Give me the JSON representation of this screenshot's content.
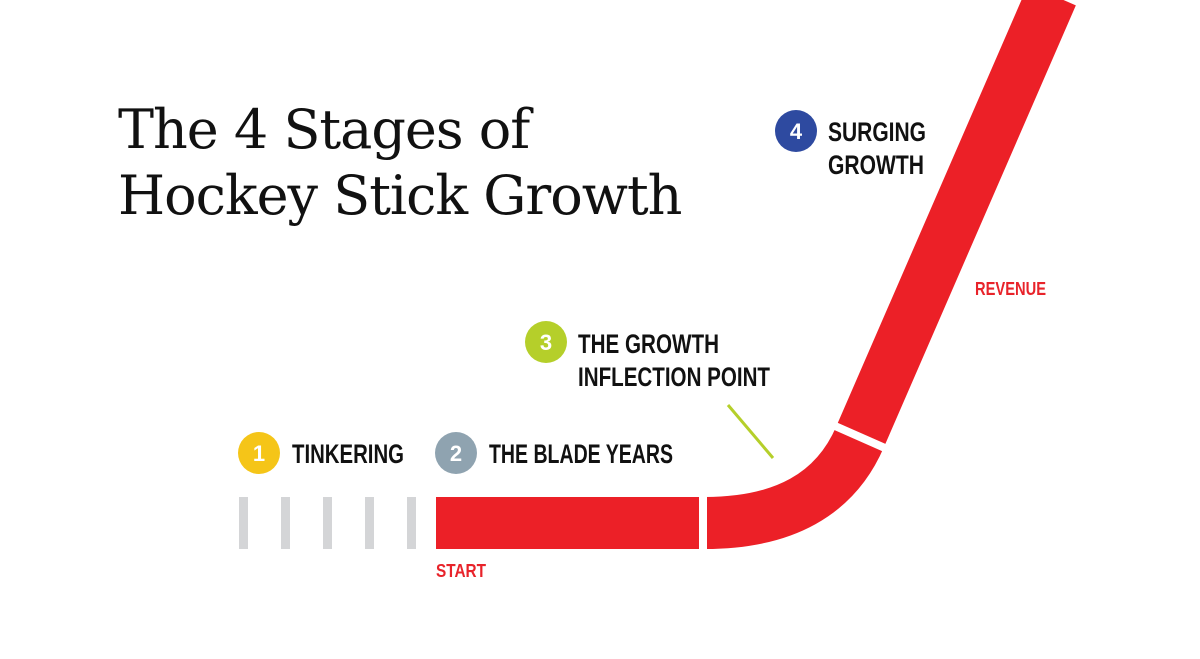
{
  "title": {
    "line1": "The 4 Stages of",
    "line2": "Hockey Stick Growth"
  },
  "stages": [
    {
      "number": "1",
      "label_lines": [
        "TINKERING"
      ],
      "color": "#f5c518"
    },
    {
      "number": "2",
      "label_lines": [
        "THE BLADE YEARS"
      ],
      "color": "#8fa3b0"
    },
    {
      "number": "3",
      "label_lines": [
        "THE GROWTH",
        "INFLECTION POINT"
      ],
      "color": "#b5cf2a"
    },
    {
      "number": "4",
      "label_lines": [
        "SURGING",
        "GROWTH"
      ],
      "color": "#2e4aa0"
    }
  ],
  "axis_labels": {
    "start": "START",
    "revenue": "REVENUE"
  },
  "colors": {
    "stick": "#ec2027",
    "tinkering_bars": "#d4d5d7",
    "pointer": "#b5cf2a"
  }
}
